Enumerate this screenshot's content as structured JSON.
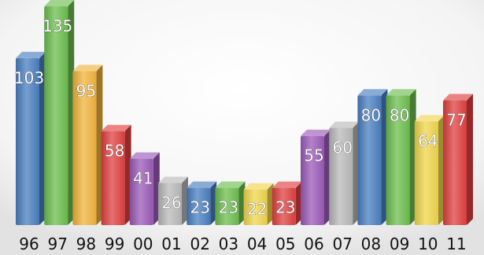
{
  "chart_data": {
    "type": "bar",
    "title": "",
    "xlabel": "",
    "ylabel": "",
    "categories": [
      "96",
      "97",
      "98",
      "99",
      "00",
      "01",
      "02",
      "03",
      "04",
      "05",
      "06",
      "07",
      "08",
      "09",
      "10",
      "11"
    ],
    "values": [
      103,
      135,
      95,
      58,
      41,
      26,
      23,
      23,
      22,
      23,
      55,
      60,
      80,
      80,
      64,
      77
    ],
    "colors": [
      "#4a7fc1",
      "#6cbf4e",
      "#f0b43c",
      "#e04040",
      "#9b5ab8",
      "#b9b9b9",
      "#4a7fc1",
      "#6cbf4e",
      "#f0d64c",
      "#e04040",
      "#9b5ab8",
      "#b9b9b9",
      "#4a7fc1",
      "#6cbf4e",
      "#f0d64c",
      "#e04040"
    ],
    "ylim": [
      0,
      135
    ],
    "grid": false,
    "legend": "none",
    "style": "3d-bars"
  }
}
